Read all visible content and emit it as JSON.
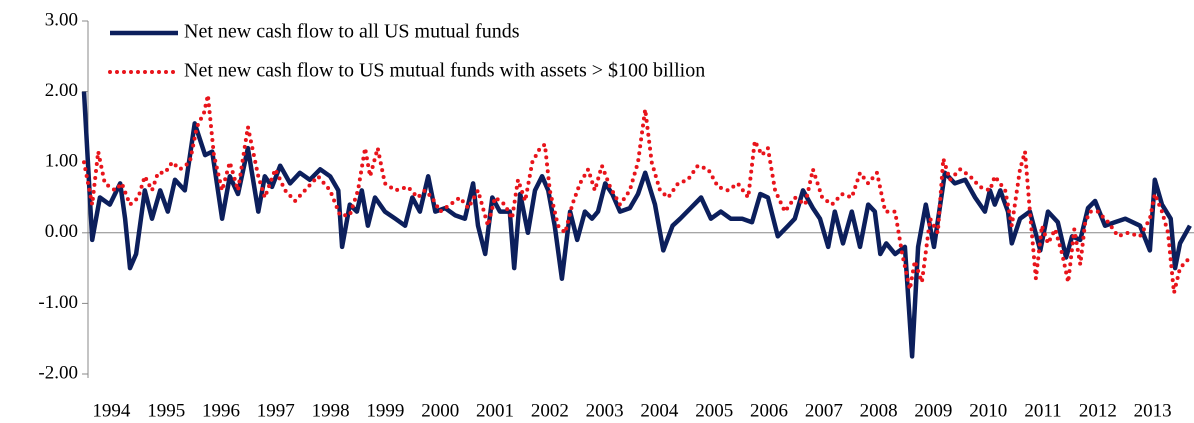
{
  "chart_data": {
    "type": "line",
    "ylim": [
      -2,
      3
    ],
    "yticks": [
      {
        "value": 3,
        "label": "3.00"
      },
      {
        "value": 2,
        "label": "2.00"
      },
      {
        "value": 1,
        "label": "1.00"
      },
      {
        "value": 0,
        "label": "0.00"
      },
      {
        "value": -1,
        "label": "-1.00"
      },
      {
        "value": -2,
        "label": "-2.00"
      }
    ],
    "xlim": [
      1994,
      2014.2
    ],
    "xticks": [
      1994,
      1995,
      1996,
      1997,
      1998,
      1999,
      2000,
      2001,
      2002,
      2003,
      2004,
      2005,
      2006,
      2007,
      2008,
      2009,
      2010,
      2011,
      2012,
      2013
    ],
    "legend": "top-left",
    "series": [
      {
        "name": "Net new cash flow to all US mutual funds",
        "color": "#0c1f5c",
        "style": "solid",
        "x": [
          1994.0,
          1994.15,
          1994.29,
          1994.47,
          1994.66,
          1994.75,
          1994.84,
          1994.95,
          1995.11,
          1995.24,
          1995.39,
          1995.53,
          1995.66,
          1995.84,
          1996.02,
          1996.21,
          1996.34,
          1996.52,
          1996.66,
          1996.81,
          1996.99,
          1997.18,
          1997.3,
          1997.43,
          1997.58,
          1997.76,
          1997.94,
          1998.12,
          1998.31,
          1998.49,
          1998.64,
          1998.71,
          1998.85,
          1998.98,
          1999.07,
          1999.18,
          1999.31,
          1999.49,
          1999.68,
          1999.86,
          1999.99,
          2000.13,
          2000.28,
          2000.41,
          2000.59,
          2000.77,
          2000.95,
          2001.1,
          2001.19,
          2001.32,
          2001.45,
          2001.59,
          2001.77,
          2001.85,
          2001.96,
          2002.1,
          2002.23,
          2002.36,
          2002.47,
          2002.59,
          2002.72,
          2002.87,
          2003.0,
          2003.14,
          2003.27,
          2003.38,
          2003.51,
          2003.64,
          2003.78,
          2003.96,
          2004.11,
          2004.24,
          2004.42,
          2004.57,
          2004.74,
          2004.88,
          2005.07,
          2005.26,
          2005.44,
          2005.62,
          2005.8,
          2006.01,
          2006.19,
          2006.34,
          2006.48,
          2006.66,
          2006.85,
          2006.97,
          2007.12,
          2007.3,
          2007.43,
          2007.58,
          2007.7,
          2007.85,
          2008.01,
          2008.16,
          2008.31,
          2008.43,
          2008.53,
          2008.64,
          2008.8,
          2008.98,
          2009.11,
          2009.22,
          2009.36,
          2009.51,
          2009.71,
          2009.89,
          2010.08,
          2010.26,
          2010.44,
          2010.53,
          2010.62,
          2010.72,
          2010.86,
          2010.93,
          2011.08,
          2011.26,
          2011.45,
          2011.59,
          2011.77,
          2011.92,
          2012.03,
          2012.18,
          2012.32,
          2012.45,
          2012.63,
          2012.81,
          2013.0,
          2013.27,
          2013.45,
          2013.54,
          2013.67,
          2013.83,
          2013.91,
          2014.0,
          2014.18
        ],
        "values": [
          2.0,
          -0.1,
          0.5,
          0.4,
          0.7,
          0.2,
          -0.5,
          -0.3,
          0.6,
          0.2,
          0.6,
          0.3,
          0.75,
          0.6,
          1.55,
          1.1,
          1.15,
          0.2,
          0.8,
          0.55,
          1.2,
          0.3,
          0.8,
          0.65,
          0.95,
          0.7,
          0.85,
          0.75,
          0.9,
          0.8,
          0.6,
          -0.2,
          0.4,
          0.3,
          0.6,
          0.1,
          0.5,
          0.3,
          0.2,
          0.1,
          0.5,
          0.3,
          0.8,
          0.3,
          0.35,
          0.25,
          0.2,
          0.7,
          0.1,
          -0.3,
          0.5,
          0.3,
          0.3,
          -0.5,
          0.55,
          0.0,
          0.6,
          0.8,
          0.6,
          0.1,
          -0.65,
          0.3,
          -0.1,
          0.3,
          0.2,
          0.3,
          0.7,
          0.55,
          0.3,
          0.35,
          0.55,
          0.85,
          0.4,
          -0.25,
          0.1,
          0.2,
          0.35,
          0.5,
          0.2,
          0.3,
          0.2,
          0.2,
          0.15,
          0.55,
          0.5,
          -0.05,
          0.1,
          0.2,
          0.6,
          0.35,
          0.2,
          -0.2,
          0.3,
          -0.15,
          0.3,
          -0.2,
          0.4,
          0.3,
          -0.3,
          -0.15,
          -0.3,
          -0.2,
          -1.75,
          -0.2,
          0.4,
          -0.2,
          0.85,
          0.7,
          0.75,
          0.5,
          0.3,
          0.6,
          0.4,
          0.6,
          0.3,
          -0.15,
          0.2,
          0.3,
          -0.25,
          0.3,
          0.15,
          -0.35,
          -0.05,
          -0.1,
          0.35,
          0.45,
          0.1,
          0.15,
          0.2,
          0.1,
          -0.25,
          0.75,
          0.4,
          0.2,
          -0.5,
          -0.15,
          0.1
        ]
      },
      {
        "name": "Net new cash flow to US mutual funds with assets > $100 billion",
        "color": "#e8141b",
        "style": "dotted",
        "x": [
          1994.0,
          1994.15,
          1994.26,
          1994.38,
          1994.57,
          1994.69,
          1994.84,
          1994.99,
          1995.11,
          1995.24,
          1995.35,
          1995.48,
          1995.61,
          1995.75,
          1995.93,
          1996.06,
          1996.19,
          1996.26,
          1996.37,
          1996.52,
          1996.66,
          1996.81,
          1996.99,
          1997.18,
          1997.3,
          1997.49,
          1997.67,
          1997.85,
          1998.03,
          1998.27,
          1998.49,
          1998.67,
          1998.85,
          1999.0,
          1999.13,
          1999.22,
          1999.36,
          1999.49,
          1999.68,
          1999.91,
          2000.09,
          2000.22,
          2000.35,
          2000.5,
          2000.68,
          2000.86,
          2001.01,
          2001.19,
          2001.37,
          2001.5,
          2001.68,
          2001.81,
          2001.92,
          2002.05,
          2002.18,
          2002.32,
          2002.41,
          2002.5,
          2002.65,
          2002.78,
          2002.91,
          2003.05,
          2003.2,
          2003.32,
          2003.45,
          2003.6,
          2003.78,
          2003.96,
          2004.11,
          2004.24,
          2004.36,
          2004.51,
          2004.66,
          2004.84,
          2005.02,
          2005.2,
          2005.39,
          2005.57,
          2005.75,
          2005.93,
          2006.12,
          2006.24,
          2006.37,
          2006.48,
          2006.61,
          2006.79,
          2006.97,
          2007.16,
          2007.3,
          2007.47,
          2007.65,
          2007.83,
          2008.01,
          2008.16,
          2008.31,
          2008.47,
          2008.62,
          2008.8,
          2008.93,
          2009.07,
          2009.16,
          2009.29,
          2009.44,
          2009.58,
          2009.68,
          2009.8,
          2009.99,
          2010.17,
          2010.35,
          2010.53,
          2010.62,
          2010.81,
          2010.93,
          2011.08,
          2011.17,
          2011.26,
          2011.37,
          2011.48,
          2011.59,
          2011.72,
          2011.85,
          2011.96,
          2012.07,
          2012.18,
          2012.27,
          2012.36,
          2012.5,
          2012.69,
          2012.87,
          2013.05,
          2013.27,
          2013.45,
          2013.54,
          2013.67,
          2013.78,
          2013.89,
          2014.0,
          2014.18
        ],
        "values": [
          1.0,
          0.4,
          1.15,
          0.7,
          0.6,
          0.7,
          0.4,
          0.5,
          0.8,
          0.6,
          0.85,
          0.85,
          1.0,
          0.9,
          1.0,
          1.5,
          1.7,
          1.95,
          1.1,
          0.6,
          1.0,
          0.6,
          1.5,
          0.8,
          0.5,
          0.9,
          0.6,
          0.45,
          0.6,
          0.8,
          0.6,
          0.25,
          0.25,
          0.6,
          1.2,
          0.8,
          1.2,
          0.7,
          0.6,
          0.65,
          0.5,
          0.6,
          0.5,
          0.3,
          0.4,
          0.5,
          0.35,
          0.6,
          0.1,
          0.5,
          0.4,
          0.2,
          0.75,
          0.45,
          1.0,
          1.2,
          1.25,
          0.6,
          0.1,
          0.0,
          0.4,
          0.7,
          0.9,
          0.6,
          0.95,
          0.65,
          0.4,
          0.6,
          1.0,
          1.75,
          1.0,
          0.6,
          0.5,
          0.7,
          0.75,
          0.95,
          0.9,
          0.65,
          0.6,
          0.7,
          0.5,
          1.3,
          1.1,
          1.2,
          0.6,
          0.3,
          0.5,
          0.4,
          0.9,
          0.5,
          0.4,
          0.55,
          0.5,
          0.85,
          0.7,
          0.85,
          0.3,
          0.3,
          -0.3,
          -0.8,
          -0.4,
          -0.7,
          0.2,
          0.0,
          1.05,
          0.75,
          0.9,
          0.8,
          0.65,
          0.6,
          0.8,
          0.6,
          0.1,
          0.9,
          1.15,
          0.3,
          -0.65,
          0.1,
          -0.15,
          0.05,
          -0.3,
          -0.7,
          0.05,
          -0.45,
          0.15,
          0.3,
          0.3,
          0.15,
          -0.05,
          0.0,
          -0.05,
          0.2,
          0.55,
          0.3,
          0.0,
          -0.85,
          -0.5,
          -0.35
        ]
      }
    ]
  }
}
